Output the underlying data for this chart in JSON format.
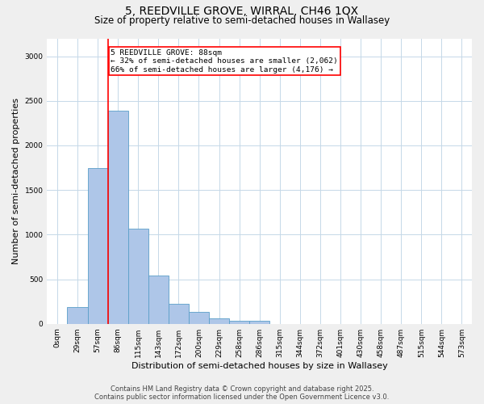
{
  "title_line1": "5, REEDVILLE GROVE, WIRRAL, CH46 1QX",
  "title_line2": "Size of property relative to semi-detached houses in Wallasey",
  "xlabel": "Distribution of semi-detached houses by size in Wallasey",
  "ylabel": "Number of semi-detached properties",
  "footnote": "Contains HM Land Registry data © Crown copyright and database right 2025.\nContains public sector information licensed under the Open Government Licence v3.0.",
  "bar_labels": [
    "0sqm",
    "29sqm",
    "57sqm",
    "86sqm",
    "115sqm",
    "143sqm",
    "172sqm",
    "200sqm",
    "229sqm",
    "258sqm",
    "286sqm",
    "315sqm",
    "344sqm",
    "372sqm",
    "401sqm",
    "430sqm",
    "458sqm",
    "487sqm",
    "515sqm",
    "544sqm",
    "573sqm"
  ],
  "bar_values": [
    0,
    185,
    1750,
    2390,
    1070,
    540,
    220,
    135,
    65,
    30,
    30,
    0,
    0,
    0,
    0,
    0,
    0,
    0,
    0,
    0,
    0
  ],
  "bar_color": "#aec6e8",
  "bar_edge_color": "#5a9ec9",
  "annotation_text": "5 REEDVILLE GROVE: 88sqm\n← 32% of semi-detached houses are smaller (2,062)\n66% of semi-detached houses are larger (4,176) →",
  "annotation_box_color": "white",
  "annotation_box_edge_color": "red",
  "vline_color": "red",
  "vline_x_index": 2.5,
  "ylim": [
    0,
    3200
  ],
  "yticks": [
    0,
    500,
    1000,
    1500,
    2000,
    2500,
    3000
  ],
  "background_color": "#efefef",
  "plot_background": "white",
  "grid_color": "#c5d8e8",
  "title_fontsize": 10,
  "subtitle_fontsize": 8.5,
  "xlabel_fontsize": 8,
  "ylabel_fontsize": 8,
  "tick_fontsize": 6.5,
  "annotation_fontsize": 6.8,
  "footnote_fontsize": 6
}
